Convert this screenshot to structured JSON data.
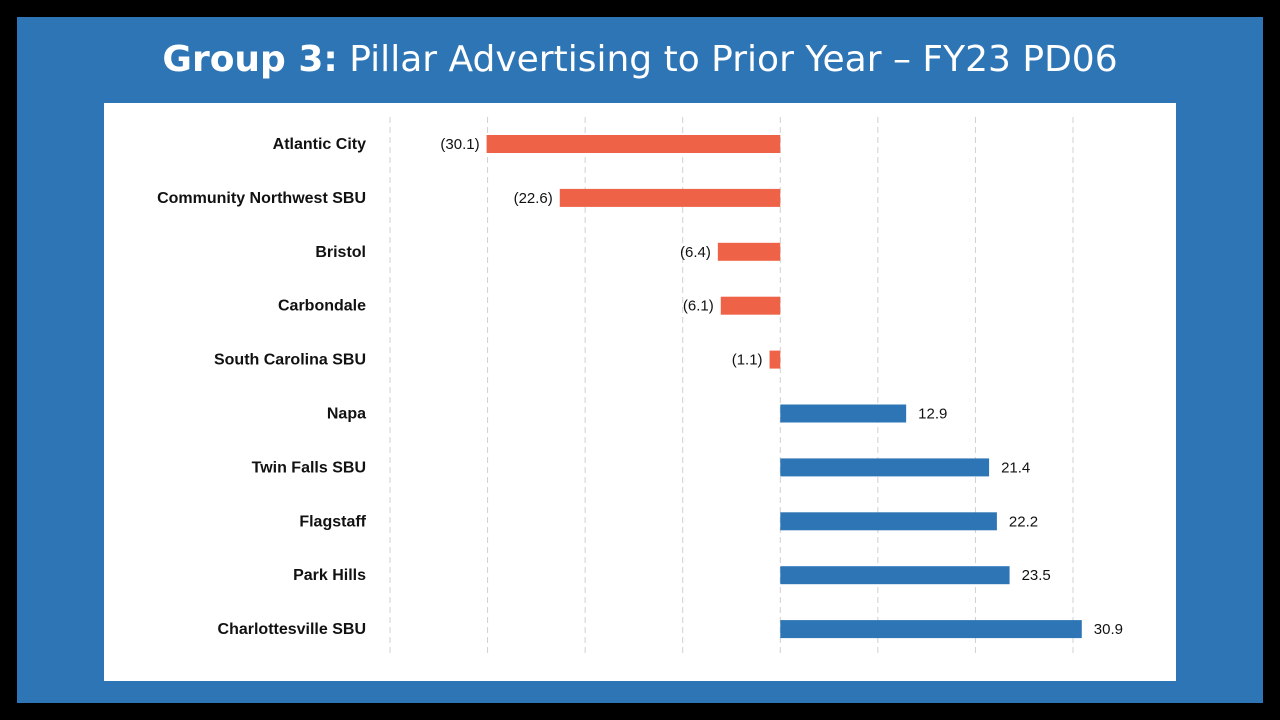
{
  "title": {
    "bold_part": "Group 3:",
    "rest": "Pillar Advertising to Prior Year – FY23 PD06"
  },
  "colors": {
    "background": "#000000",
    "slide": "#2E75B6",
    "negative": "#EE6348",
    "positive": "#2E75B6",
    "grid": "#D0D0D0"
  },
  "chart_data": {
    "type": "bar",
    "orientation": "horizontal",
    "categories": [
      "Atlantic City",
      "Community Northwest SBU",
      "Bristol",
      "Carbondale",
      "South Carolina SBU",
      "Napa",
      "Twin Falls SBU",
      "Flagstaff",
      "Park Hills",
      "Charlottesville SBU"
    ],
    "values": [
      -30.1,
      -22.6,
      -6.4,
      -6.1,
      -1.1,
      12.9,
      21.4,
      22.2,
      23.5,
      30.9
    ],
    "data_labels": [
      "(30.1)",
      "(22.6)",
      "(6.4)",
      "(6.1)",
      "(1.1)",
      "12.9",
      "21.4",
      "22.2",
      "23.5",
      "30.9"
    ],
    "xlim": [
      -40,
      30
    ],
    "grid_step": 10,
    "grid": true,
    "legend": "none"
  }
}
